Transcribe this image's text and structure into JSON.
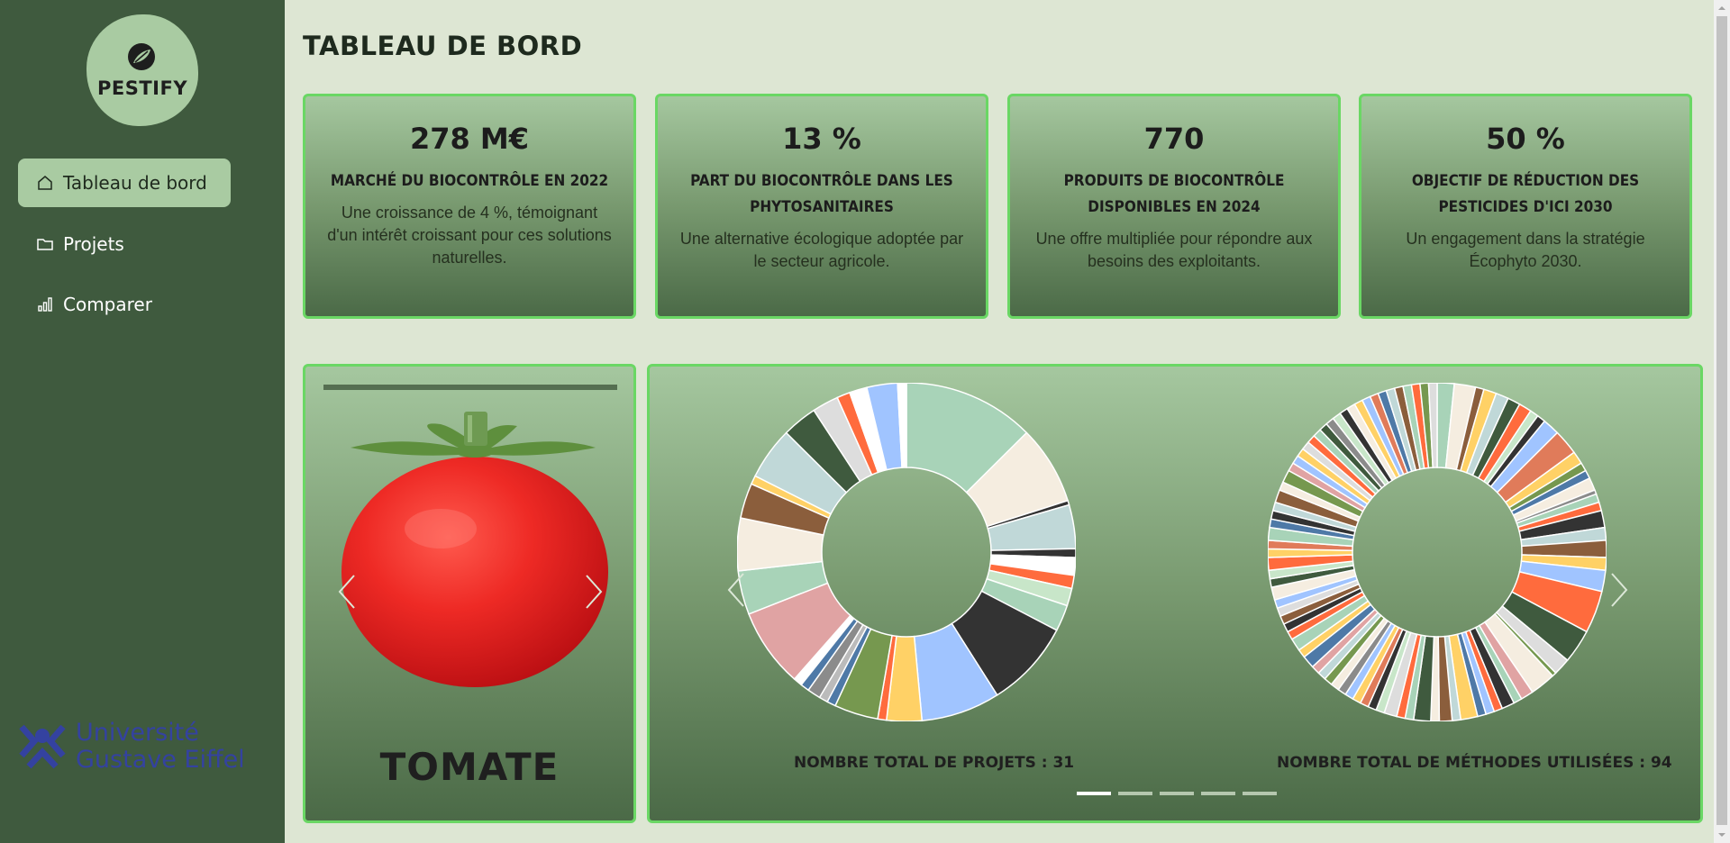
{
  "app": {
    "logo_text": "PESTIFY"
  },
  "sidebar": {
    "items": [
      {
        "label": "Tableau de bord",
        "icon": "home-icon",
        "active": true
      },
      {
        "label": "Projets",
        "icon": "folder-icon",
        "active": false
      },
      {
        "label": "Comparer",
        "icon": "bar-chart-icon",
        "active": false
      }
    ],
    "university_line1": "Université",
    "university_line2": "Gustave Eiffel"
  },
  "header": {
    "title": "TABLEAU DE BORD"
  },
  "stats": [
    {
      "value": "278 M€",
      "title": "MARCHÉ DU BIOCONTRÔLE EN 2022",
      "desc": "Une croissance de 4 %, témoignant d'un intérêt croissant pour ces solutions naturelles."
    },
    {
      "value": "13 %",
      "title": "PART DU BIOCONTRÔLE DANS LES PHYTOSANITAIRES",
      "desc": "Une alternative écologique adoptée par le secteur agricole."
    },
    {
      "value": "770",
      "title": "PRODUITS DE BIOCONTRÔLE DISPONIBLES EN 2024",
      "desc": "Une offre multipliée pour répondre aux besoins des exploitants."
    },
    {
      "value": "50 %",
      "title": "OBJECTIF DE RÉDUCTION DES PESTICIDES D'ICI 2030",
      "desc": "Un engagement dans la stratégie Écophyto 2030."
    }
  ],
  "vegetable": {
    "name": "TOMATE",
    "prev_icon": "chevron-left-icon",
    "next_icon": "chevron-right-icon"
  },
  "charts": {
    "projects_label": "NOMBRE TOTAL DE PROJETS : 31",
    "methods_label": "NOMBRE TOTAL DE MÉTHODES UTILISÉES : 94",
    "carousel_pages": 5,
    "active_page": 0
  },
  "colors": {
    "sidebar_bg": "#3f5a3e",
    "page_bg": "#dde6d3",
    "accent_border": "#6ad764",
    "active_nav": "#a9cba2",
    "university_blue": "#3442a0"
  },
  "chart_data": [
    {
      "type": "pie",
      "donut": true,
      "slice_count": 31,
      "values": [
        15,
        9,
        0.5,
        5,
        1,
        2,
        1.5,
        2,
        3,
        10,
        9,
        4,
        1,
        5,
        1,
        1,
        1.5,
        1,
        1,
        9,
        5,
        6,
        4,
        1,
        6,
        4,
        3,
        1.5,
        2,
        3.5,
        1
      ],
      "colors": [
        "#a8d3b8",
        "#f5ede0",
        "#333333",
        "#c0d8d8",
        "#333333",
        "#ffffff",
        "#ff6b3d",
        "#c8e6c9",
        "#a8d3b8",
        "#333333",
        "#a0c4ff",
        "#ffd166",
        "#ff6b3d",
        "#76984f",
        "#4e79a7",
        "#bbbbbb",
        "#8b8b8b",
        "#4e79a7",
        "#ffffff",
        "#e0a3a3",
        "#a8d3b8",
        "#f5ede0",
        "#8b5e3c",
        "#ffd166",
        "#c0d8d8",
        "#3f5a3e",
        "#dddddd",
        "#ff6b3d",
        "#ffffff",
        "#a0c4ff",
        "#ffffff"
      ]
    },
    {
      "type": "pie",
      "donut": true,
      "slice_count": 94,
      "values": [
        2,
        2.5,
        1,
        1.5,
        1.5,
        1.5,
        1.5,
        1,
        1,
        2,
        3,
        1.5,
        1,
        1,
        1.5,
        0.5,
        1,
        1,
        2,
        1.5,
        2,
        1.5,
        2.5,
        5,
        4,
        2,
        0.5,
        3,
        1.5,
        1,
        1.5,
        1,
        1,
        1,
        2,
        1,
        1.5,
        1,
        2,
        1,
        1,
        1.5,
        1,
        1,
        1,
        1,
        1,
        1,
        1,
        1,
        1,
        1,
        1.5,
        1,
        1.5,
        1,
        1,
        1,
        1,
        1,
        1.5,
        1,
        1,
        1.5,
        1,
        1,
        1.5,
        1,
        1,
        1,
        1.5,
        1,
        1.5,
        1,
        1,
        1,
        1,
        1,
        1,
        1,
        1,
        1,
        1,
        1,
        1,
        1,
        1,
        1,
        1,
        1,
        1,
        1,
        1,
        1
      ],
      "colors": [
        "#a8d3b8",
        "#f5ede0",
        "#8b5e3c",
        "#ffd166",
        "#c0d8d8",
        "#3f5a3e",
        "#ff6b3d",
        "#c8e6c9",
        "#333333",
        "#a0c4ff",
        "#e07b5a",
        "#ffd166",
        "#76984f",
        "#4e79a7",
        "#f5ede0",
        "#8b8b8b",
        "#a8d3b8",
        "#ff6b3d",
        "#333333",
        "#c0d8d8",
        "#8b5e3c",
        "#ffd166",
        "#a0c4ff",
        "#ff6b3d",
        "#3f5a3e",
        "#dddddd",
        "#76984f",
        "#f5ede0",
        "#e0a3a3",
        "#a8d3b8",
        "#333333",
        "#ff6b3d",
        "#a0c4ff",
        "#4e79a7",
        "#ffd166",
        "#c0d8d8",
        "#8b5e3c",
        "#f5ede0",
        "#3f5a3e",
        "#a8d3b8",
        "#ff6b3d",
        "#dddddd",
        "#c8e6c9",
        "#333333",
        "#e07b5a",
        "#ffd166",
        "#a0c4ff",
        "#8b8b8b",
        "#f5ede0",
        "#76984f",
        "#c0d8d8",
        "#e0a3a3",
        "#4e79a7",
        "#ffd166",
        "#a8d3b8",
        "#ff6b3d",
        "#333333",
        "#8b5e3c",
        "#dddddd",
        "#a0c4ff",
        "#f5ede0",
        "#3f5a3e",
        "#c8e6c9",
        "#ff6b3d",
        "#ffd166",
        "#e07b5a",
        "#a8d3b8",
        "#4e79a7",
        "#333333",
        "#c0d8d8",
        "#8b5e3c",
        "#f5ede0",
        "#76984f",
        "#e0a3a3",
        "#a0c4ff",
        "#ffd166",
        "#dddddd",
        "#ff6b3d",
        "#a8d3b8",
        "#3f5a3e",
        "#8b8b8b",
        "#c8e6c9",
        "#333333",
        "#f5ede0",
        "#ffd166",
        "#a0c4ff",
        "#e07b5a",
        "#4e79a7",
        "#c0d8d8",
        "#8b5e3c",
        "#a8d3b8",
        "#ff6b3d",
        "#76984f",
        "#dddddd"
      ]
    }
  ]
}
